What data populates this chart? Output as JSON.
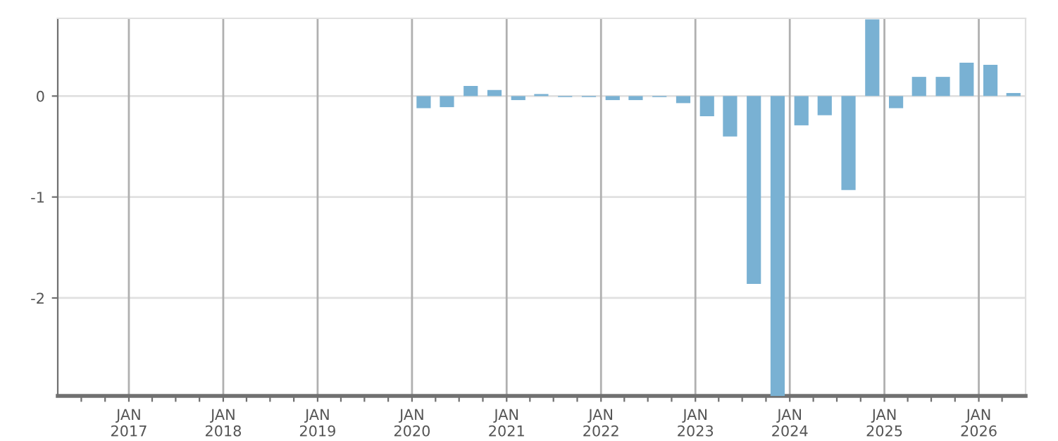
{
  "chart_data": {
    "type": "bar",
    "color": "#79b1d3",
    "x": [
      "2020-02-15",
      "2020-05-15",
      "2020-08-15",
      "2020-11-15",
      "2021-02-15",
      "2021-05-15",
      "2021-08-15",
      "2021-11-15",
      "2022-02-15",
      "2022-05-15",
      "2022-08-15",
      "2022-11-15",
      "2023-02-15",
      "2023-05-15",
      "2023-08-15",
      "2023-11-15",
      "2024-02-15",
      "2024-05-15",
      "2024-08-15",
      "2024-11-15",
      "2025-02-15",
      "2025-05-15",
      "2025-08-15",
      "2025-11-15",
      "2026-02-15",
      "2026-05-15"
    ],
    "values": [
      -0.12,
      -0.11,
      0.1,
      0.06,
      -0.04,
      0.02,
      -0.01,
      -0.01,
      -0.04,
      -0.04,
      -0.01,
      -0.07,
      -0.2,
      -0.4,
      -1.86,
      -2.97,
      -0.29,
      -0.19,
      -0.93,
      0.76,
      -0.12,
      0.19,
      0.19,
      0.33,
      0.31,
      0.03
    ],
    "xlim": [
      "2016-04-01",
      "2026-07-01"
    ],
    "xticks": [
      {
        "value": "2016-07-01",
        "label": null
      },
      {
        "value": "2016-10-01",
        "label": null
      },
      {
        "value": "2017-01-01",
        "label": "JAN\n2017"
      },
      {
        "value": "2017-04-01",
        "label": null
      },
      {
        "value": "2017-07-01",
        "label": null
      },
      {
        "value": "2017-10-01",
        "label": null
      },
      {
        "value": "2018-01-01",
        "label": "JAN\n2018"
      },
      {
        "value": "2018-04-01",
        "label": null
      },
      {
        "value": "2018-07-01",
        "label": null
      },
      {
        "value": "2018-10-01",
        "label": null
      },
      {
        "value": "2019-01-01",
        "label": "JAN\n2019"
      },
      {
        "value": "2019-04-01",
        "label": null
      },
      {
        "value": "2019-07-01",
        "label": null
      },
      {
        "value": "2019-10-01",
        "label": null
      },
      {
        "value": "2020-01-01",
        "label": "JAN\n2020"
      },
      {
        "value": "2020-04-01",
        "label": null
      },
      {
        "value": "2020-07-01",
        "label": null
      },
      {
        "value": "2020-10-01",
        "label": null
      },
      {
        "value": "2021-01-01",
        "label": "JAN\n2021"
      },
      {
        "value": "2021-04-01",
        "label": null
      },
      {
        "value": "2021-07-01",
        "label": null
      },
      {
        "value": "2021-10-01",
        "label": null
      },
      {
        "value": "2022-01-01",
        "label": "JAN\n2022"
      },
      {
        "value": "2022-04-01",
        "label": null
      },
      {
        "value": "2022-07-01",
        "label": null
      },
      {
        "value": "2022-10-01",
        "label": null
      },
      {
        "value": "2023-01-01",
        "label": "JAN\n2023"
      },
      {
        "value": "2023-04-01",
        "label": null
      },
      {
        "value": "2023-07-01",
        "label": null
      },
      {
        "value": "2023-10-01",
        "label": null
      },
      {
        "value": "2024-01-01",
        "label": "JAN\n2024"
      },
      {
        "value": "2024-04-01",
        "label": null
      },
      {
        "value": "2024-07-01",
        "label": null
      },
      {
        "value": "2024-10-01",
        "label": null
      },
      {
        "value": "2025-01-01",
        "label": "JAN\n2025"
      },
      {
        "value": "2025-04-01",
        "label": null
      },
      {
        "value": "2025-07-01",
        "label": null
      },
      {
        "value": "2025-10-01",
        "label": null
      },
      {
        "value": "2026-01-01",
        "label": "JAN\n2026"
      },
      {
        "value": "2026-04-01",
        "label": null
      }
    ],
    "ylim": [
      -2.97,
      0.77
    ],
    "yticks": [
      0,
      -1,
      -2
    ],
    "grid": true
  }
}
